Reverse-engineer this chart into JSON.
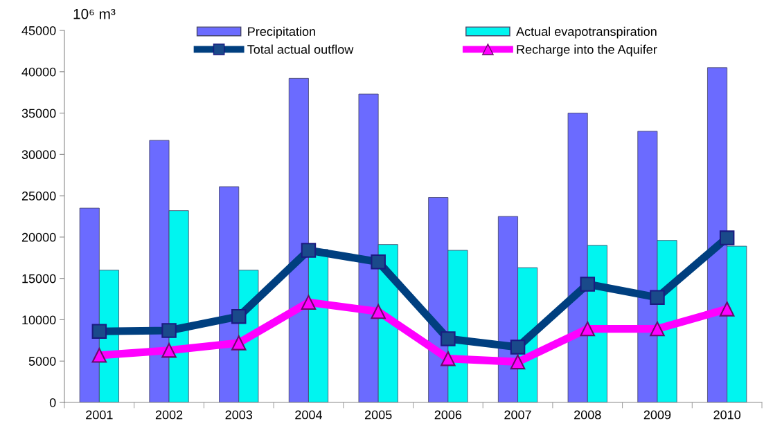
{
  "chart_data": {
    "type": "bar",
    "ylabel": "10⁶ m³",
    "categories": [
      "2001",
      "2002",
      "2003",
      "2004",
      "2005",
      "2006",
      "2007",
      "2008",
      "2009",
      "2010"
    ],
    "series": [
      {
        "name": "Precipitation",
        "color": "#6b6bff",
        "values": [
          23500,
          31700,
          26100,
          39200,
          37300,
          24800,
          22500,
          35000,
          32800,
          40500
        ]
      },
      {
        "name": "Actual evapotranspiration",
        "color": "#00f5f0",
        "values": [
          16000,
          23200,
          16000,
          18500,
          19100,
          18400,
          16300,
          19000,
          19600,
          18900
        ]
      },
      {
        "name": "Total actual outflow",
        "type": "line",
        "color": "#003f7f",
        "marker": "square",
        "values": [
          8600,
          8700,
          10400,
          18400,
          17000,
          7700,
          6700,
          14300,
          12700,
          19900
        ]
      },
      {
        "name": "Recharge into the Aquifer",
        "type": "line",
        "color": "#ff00ff",
        "marker": "triangle",
        "values": [
          5700,
          6300,
          7200,
          12100,
          11000,
          5300,
          4900,
          8900,
          8900,
          11300
        ]
      }
    ],
    "ylim": [
      0,
      45000
    ],
    "yticks": [
      0,
      5000,
      10000,
      15000,
      20000,
      25000,
      30000,
      35000,
      40000,
      45000
    ],
    "grid": false,
    "legend": "top",
    "line_style": "solid"
  }
}
